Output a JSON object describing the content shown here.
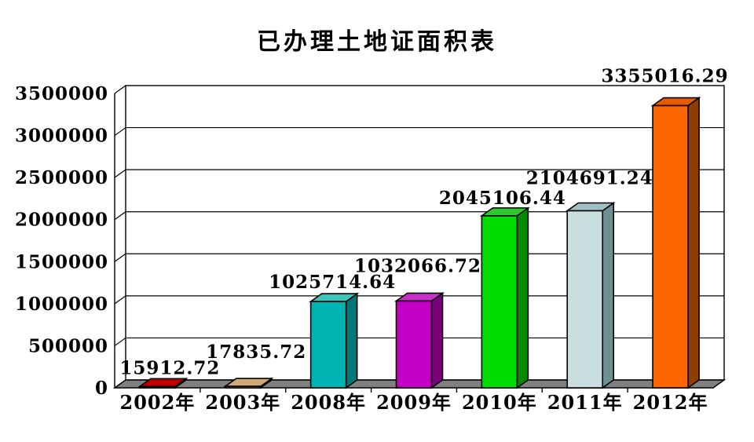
{
  "chart_data": {
    "type": "bar",
    "projection": "3d",
    "title": "已办理土地证面积表",
    "xlabel": "",
    "ylabel": "",
    "categories": [
      "2002年",
      "2003年",
      "2008年",
      "2009年",
      "2010年",
      "2011年",
      "2012年"
    ],
    "values": [
      15912.72,
      17835.72,
      1025714.64,
      1032066.72,
      2045106.44,
      2104691.24,
      3355016.29
    ],
    "data_labels": [
      "15912.72",
      "17835.72",
      "1025714.64",
      "1032066.72",
      "2045106.44",
      "2104691.24",
      "3355016.29"
    ],
    "ylim": [
      0,
      3500000
    ],
    "ytick_step": 500000,
    "yticks": [
      "0",
      "500000",
      "1000000",
      "1500000",
      "2000000",
      "2500000",
      "3000000",
      "3500000"
    ],
    "grid": true,
    "legend": "none",
    "wall_color": "#FFFFFF",
    "floor_color": "#808080",
    "outline_color": "#000000",
    "bar_colors": [
      {
        "front": "#CC0000",
        "top": "#C00000",
        "side": "#7E0000"
      },
      {
        "front": "#D2A679",
        "top": "#D0A878",
        "side": "#9C7A50"
      },
      {
        "front": "#00B3B3",
        "top": "#3CC6BC",
        "side": "#007878"
      },
      {
        "front": "#C400C4",
        "top": "#CA2FCA",
        "side": "#7A007A"
      },
      {
        "front": "#00DC00",
        "top": "#2FC92F",
        "side": "#008A00"
      },
      {
        "front": "#C9DEDE",
        "top": "#9FBFC2",
        "side": "#6F8F92"
      },
      {
        "front": "#FF6600",
        "top": "#E85C00",
        "side": "#8F3D00"
      }
    ]
  }
}
